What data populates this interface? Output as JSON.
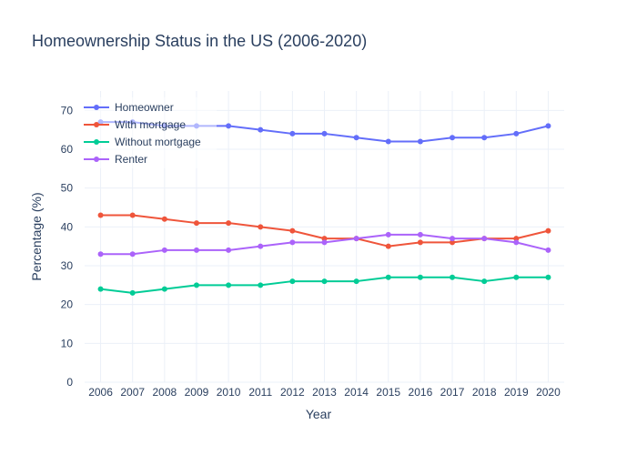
{
  "chart_data": {
    "type": "line",
    "title": "Homeownership Status in the US (2006-2020)",
    "xlabel": "Year",
    "ylabel": "Percentage (%)",
    "x": [
      "2006",
      "2007",
      "2008",
      "2009",
      "2010",
      "2011",
      "2012",
      "2013",
      "2014",
      "2015",
      "2016",
      "2017",
      "2018",
      "2019",
      "2020"
    ],
    "ylim": [
      0,
      75
    ],
    "yticks": [
      0,
      10,
      20,
      30,
      40,
      50,
      60,
      70
    ],
    "grid": true,
    "legend_position": "top-left",
    "series": [
      {
        "name": "Homeowner",
        "color": "#636efa",
        "values": [
          67,
          67,
          66,
          66,
          66,
          65,
          64,
          64,
          63,
          62,
          62,
          63,
          63,
          64,
          66
        ]
      },
      {
        "name": "With mortgage",
        "color": "#ef553b",
        "values": [
          43,
          43,
          42,
          41,
          41,
          40,
          39,
          37,
          37,
          35,
          36,
          36,
          37,
          37,
          39
        ]
      },
      {
        "name": "Without mortgage",
        "color": "#00cc96",
        "values": [
          24,
          23,
          24,
          25,
          25,
          25,
          26,
          26,
          26,
          27,
          27,
          27,
          26,
          27,
          27
        ]
      },
      {
        "name": "Renter",
        "color": "#ab63fa",
        "values": [
          33,
          33,
          34,
          34,
          34,
          35,
          36,
          36,
          37,
          38,
          38,
          37,
          37,
          36,
          34
        ]
      }
    ]
  }
}
